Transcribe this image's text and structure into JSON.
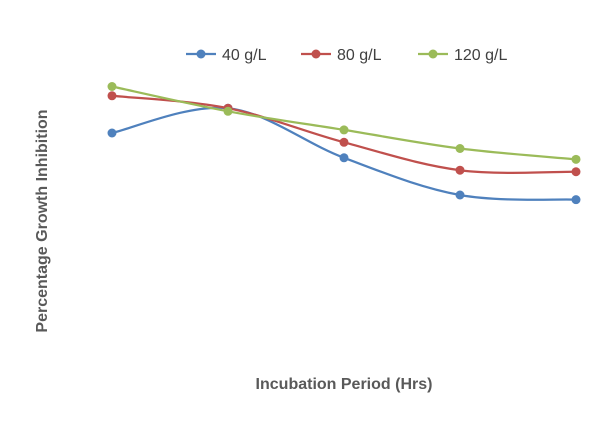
{
  "chart_data": {
    "type": "line",
    "title": "",
    "xlabel": "Incubation Period (Hrs)",
    "ylabel": "Percentage Growth Inhibition",
    "x": [
      1,
      2,
      3,
      4,
      5
    ],
    "series": [
      {
        "name": "40 g/L",
        "color": "#4F81BD",
        "values": [
          70,
          78,
          62,
          50,
          48.5
        ]
      },
      {
        "name": "80 g/L",
        "color": "#C0504D",
        "values": [
          82,
          78,
          67,
          58,
          57.5
        ]
      },
      {
        "name": "120 g/L",
        "color": "#9BBB59",
        "values": [
          85,
          77,
          71,
          65,
          61.5
        ]
      }
    ],
    "xlim": [
      1,
      5
    ],
    "ylim": [
      0,
      100
    ],
    "grid": false,
    "axes_visible": false,
    "tick_labels_visible": false,
    "legend_position": "top",
    "smooth": true
  }
}
